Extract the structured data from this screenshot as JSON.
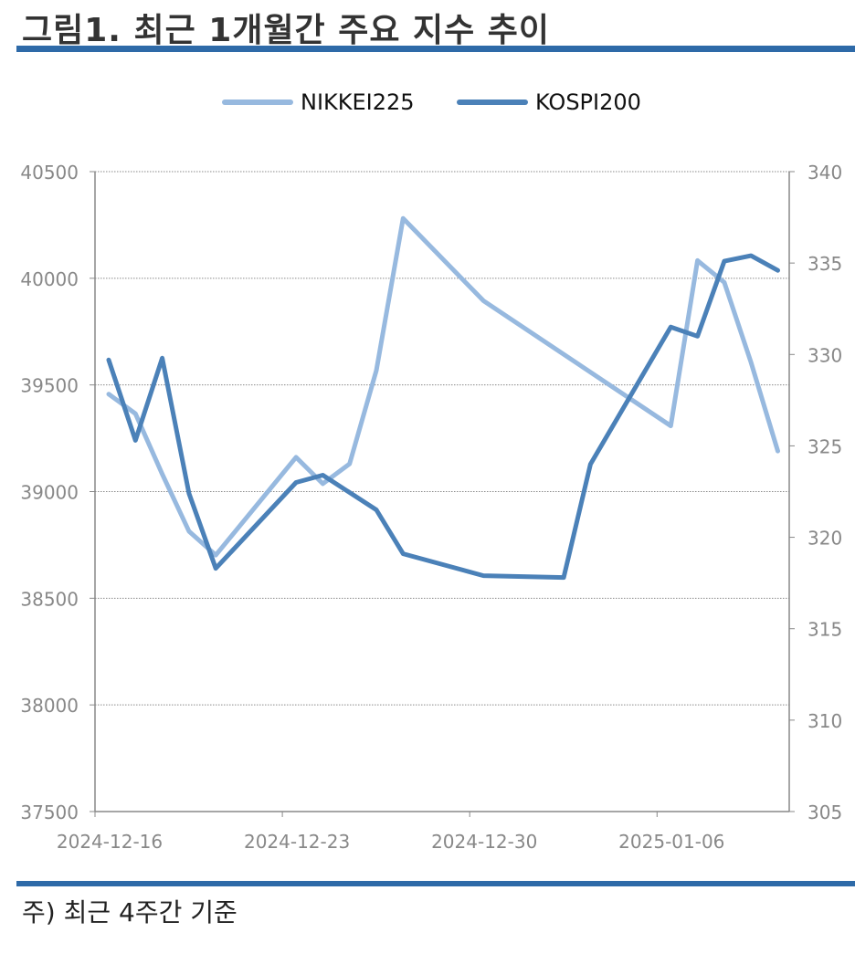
{
  "header": {
    "title": "그림1. 최근 1개월간 주요 지수 추이"
  },
  "footer": {
    "note": "주) 최근 4주간 기준"
  },
  "chart_data": {
    "type": "line",
    "title": "",
    "x": [
      "2024-12-16",
      "2024-12-17",
      "2024-12-18",
      "2024-12-19",
      "2024-12-20",
      "2024-12-23",
      "2024-12-24",
      "2024-12-25",
      "2024-12-26",
      "2024-12-27",
      "2024-12-30",
      "2025-01-02",
      "2025-01-03",
      "2025-01-06",
      "2025-01-07",
      "2025-01-08",
      "2025-01-09",
      "2025-01-10"
    ],
    "x_ticks": [
      "2024-12-16",
      "2024-12-23",
      "2024-12-30",
      "2025-01-06"
    ],
    "y_left": {
      "ylim": [
        37500,
        40500
      ],
      "ticks": [
        37500,
        38000,
        38500,
        39000,
        39500,
        40000,
        40500
      ]
    },
    "y_right": {
      "ylim": [
        305,
        340
      ],
      "ticks": [
        305,
        310,
        315,
        320,
        325,
        330,
        335,
        340
      ]
    },
    "grid": true,
    "legend_position": "top-center",
    "series": [
      {
        "name": "NIKKEI225",
        "axis": "left",
        "color": "#97b9df",
        "points": [
          [
            "2024-12-16",
            39457
          ],
          [
            "2024-12-17",
            39365
          ],
          [
            "2024-12-18",
            39082
          ],
          [
            "2024-12-19",
            38814
          ],
          [
            "2024-12-20",
            38702
          ],
          [
            "2024-12-23",
            39161
          ],
          [
            "2024-12-24",
            39037
          ],
          [
            "2024-12-25",
            39130
          ],
          [
            "2024-12-26",
            39568
          ],
          [
            "2024-12-27",
            40281
          ],
          [
            "2024-12-30",
            39895
          ],
          [
            "2025-01-06",
            39308
          ],
          [
            "2025-01-07",
            40083
          ],
          [
            "2025-01-08",
            39981
          ],
          [
            "2025-01-09",
            39605
          ],
          [
            "2025-01-10",
            39190
          ]
        ]
      },
      {
        "name": "KOSPI200",
        "axis": "right",
        "color": "#4b81b8",
        "points": [
          [
            "2024-12-16",
            329.7
          ],
          [
            "2024-12-17",
            325.3
          ],
          [
            "2024-12-18",
            329.8
          ],
          [
            "2024-12-19",
            322.4
          ],
          [
            "2024-12-20",
            318.3
          ],
          [
            "2024-12-23",
            323.0
          ],
          [
            "2024-12-24",
            323.4
          ],
          [
            "2024-12-26",
            321.5
          ],
          [
            "2024-12-27",
            319.1
          ],
          [
            "2024-12-30",
            317.9
          ],
          [
            "2025-01-02",
            317.8
          ],
          [
            "2025-01-03",
            324.0
          ],
          [
            "2025-01-06",
            331.5
          ],
          [
            "2025-01-07",
            331.0
          ],
          [
            "2025-01-08",
            335.1
          ],
          [
            "2025-01-09",
            335.4
          ],
          [
            "2025-01-10",
            334.6
          ]
        ]
      }
    ]
  }
}
